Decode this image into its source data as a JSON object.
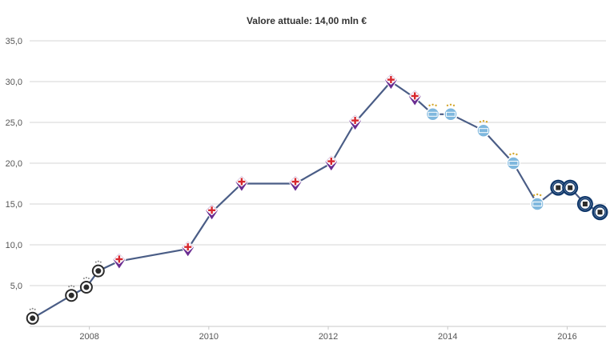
{
  "chart_data": {
    "type": "line",
    "title": "Valore attuale: 14,00 mln €",
    "xlabel": "",
    "ylabel": "",
    "xlim": [
      2007.0,
      2016.65
    ],
    "ylim": [
      0,
      35
    ],
    "y_ticks": [
      "5,0",
      "10,0",
      "15,0",
      "20,0",
      "25,0",
      "30,0",
      "35,0"
    ],
    "y_tick_values": [
      5,
      10,
      15,
      20,
      25,
      30,
      35
    ],
    "x_ticks": [
      "2008",
      "2010",
      "2012",
      "2014",
      "2016"
    ],
    "x_tick_values": [
      2008,
      2010,
      2012,
      2014,
      2016
    ],
    "grid": true,
    "legend": "none",
    "line_color": "#4a5d86",
    "series": [
      {
        "values": [
          {
            "x": 2007.05,
            "y": 1.0,
            "club": "partizan"
          },
          {
            "x": 2007.7,
            "y": 3.8,
            "club": "partizan"
          },
          {
            "x": 2007.95,
            "y": 4.8,
            "club": "partizan"
          },
          {
            "x": 2008.15,
            "y": 6.8,
            "club": "partizan"
          },
          {
            "x": 2008.5,
            "y": 8.0,
            "club": "fiorentina"
          },
          {
            "x": 2009.65,
            "y": 9.5,
            "club": "fiorentina"
          },
          {
            "x": 2010.05,
            "y": 14.0,
            "club": "fiorentina"
          },
          {
            "x": 2010.55,
            "y": 17.5,
            "club": "fiorentina"
          },
          {
            "x": 2011.45,
            "y": 17.5,
            "club": "fiorentina"
          },
          {
            "x": 2012.05,
            "y": 20.0,
            "club": "fiorentina"
          },
          {
            "x": 2012.45,
            "y": 25.0,
            "club": "fiorentina"
          },
          {
            "x": 2013.05,
            "y": 30.0,
            "club": "fiorentina"
          },
          {
            "x": 2013.45,
            "y": 28.0,
            "club": "fiorentina"
          },
          {
            "x": 2013.75,
            "y": 26.0,
            "club": "mancity"
          },
          {
            "x": 2014.05,
            "y": 26.0,
            "club": "mancity"
          },
          {
            "x": 2014.6,
            "y": 24.0,
            "club": "mancity"
          },
          {
            "x": 2015.1,
            "y": 20.0,
            "club": "mancity"
          },
          {
            "x": 2015.5,
            "y": 15.0,
            "club": "mancity"
          },
          {
            "x": 2015.85,
            "y": 17.0,
            "club": "inter"
          },
          {
            "x": 2016.05,
            "y": 17.0,
            "club": "inter"
          },
          {
            "x": 2016.3,
            "y": 15.0,
            "club": "inter"
          },
          {
            "x": 2016.55,
            "y": 14.0,
            "club": "inter"
          }
        ]
      }
    ]
  },
  "marker_colors": {
    "partizan": "#2b2b2b",
    "fiorentina": "#6a2c91",
    "fiorentina_cross": "#d7282f",
    "mancity": "#7fb8de",
    "mancity_gold": "#d4a72c",
    "inter": "#10386b"
  }
}
